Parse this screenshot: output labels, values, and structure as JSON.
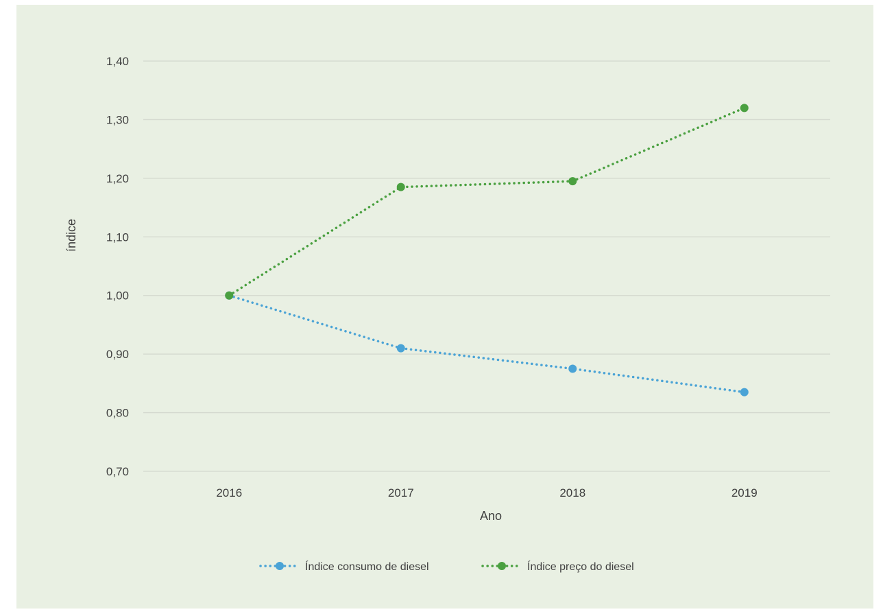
{
  "colors": {
    "background": "#e9f0e3",
    "grid": "#d3d8ce",
    "text": "#404040"
  },
  "chart_data": {
    "type": "line",
    "title": "",
    "xlabel": "Ano",
    "ylabel": "índice",
    "x": [
      "2016",
      "2017",
      "2018",
      "2019"
    ],
    "ylim": [
      0.7,
      1.4
    ],
    "yticks": [
      "0,70",
      "0,80",
      "0,90",
      "1,00",
      "1,10",
      "1,20",
      "1,30",
      "1,40"
    ],
    "grid": true,
    "legend_position": "bottom",
    "line_style": "dotted",
    "series": [
      {
        "name": "Índice consumo de diesel",
        "color": "#4aa3d6",
        "values": [
          1.0,
          0.91,
          0.875,
          0.835
        ]
      },
      {
        "name": "Índice preço do diesel",
        "color": "#4aa040",
        "values": [
          1.0,
          1.185,
          1.195,
          1.32
        ]
      }
    ]
  }
}
